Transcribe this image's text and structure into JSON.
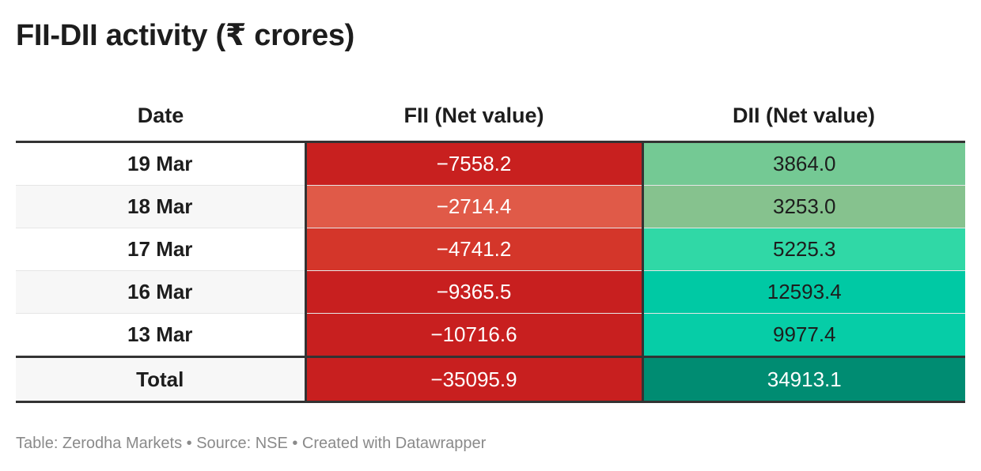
{
  "title": "FII-DII activity (₹ crores)",
  "chart_data": {
    "type": "table",
    "title": "FII-DII activity (₹ crores)",
    "columns": [
      "Date",
      "FII (Net value)",
      "DII (Net value)"
    ],
    "rows": [
      {
        "date": "19 Mar",
        "fii": "−7558.2",
        "dii": "3864.0",
        "fii_value": -7558.2,
        "dii_value": 3864.0,
        "fii_color": "#c8201f",
        "dii_color": "#74c994"
      },
      {
        "date": "18 Mar",
        "fii": "−2714.4",
        "dii": "3253.0",
        "fii_value": -2714.4,
        "dii_value": 3253.0,
        "fii_color": "#e05a48",
        "dii_color": "#86c28e"
      },
      {
        "date": "17 Mar",
        "fii": "−4741.2",
        "dii": "5225.3",
        "fii_value": -4741.2,
        "dii_value": 5225.3,
        "fii_color": "#d4362a",
        "dii_color": "#30d8a6"
      },
      {
        "date": "16 Mar",
        "fii": "−9365.5",
        "dii": "12593.4",
        "fii_value": -9365.5,
        "dii_value": 12593.4,
        "fii_color": "#c81f1f",
        "dii_color": "#00c9a4"
      },
      {
        "date": "13 Mar",
        "fii": "−10716.6",
        "dii": "9977.4",
        "fii_value": -10716.6,
        "dii_value": 9977.4,
        "fii_color": "#c81f1f",
        "dii_color": "#06cda7"
      }
    ],
    "total": {
      "label": "Total",
      "fii": "−35095.9",
      "dii": "34913.1",
      "fii_value": -35095.9,
      "dii_value": 34913.1,
      "fii_color": "#c81f1f",
      "dii_color": "#008c72"
    }
  },
  "footer": "Table: Zerodha Markets • Source: NSE • Created with Datawrapper"
}
